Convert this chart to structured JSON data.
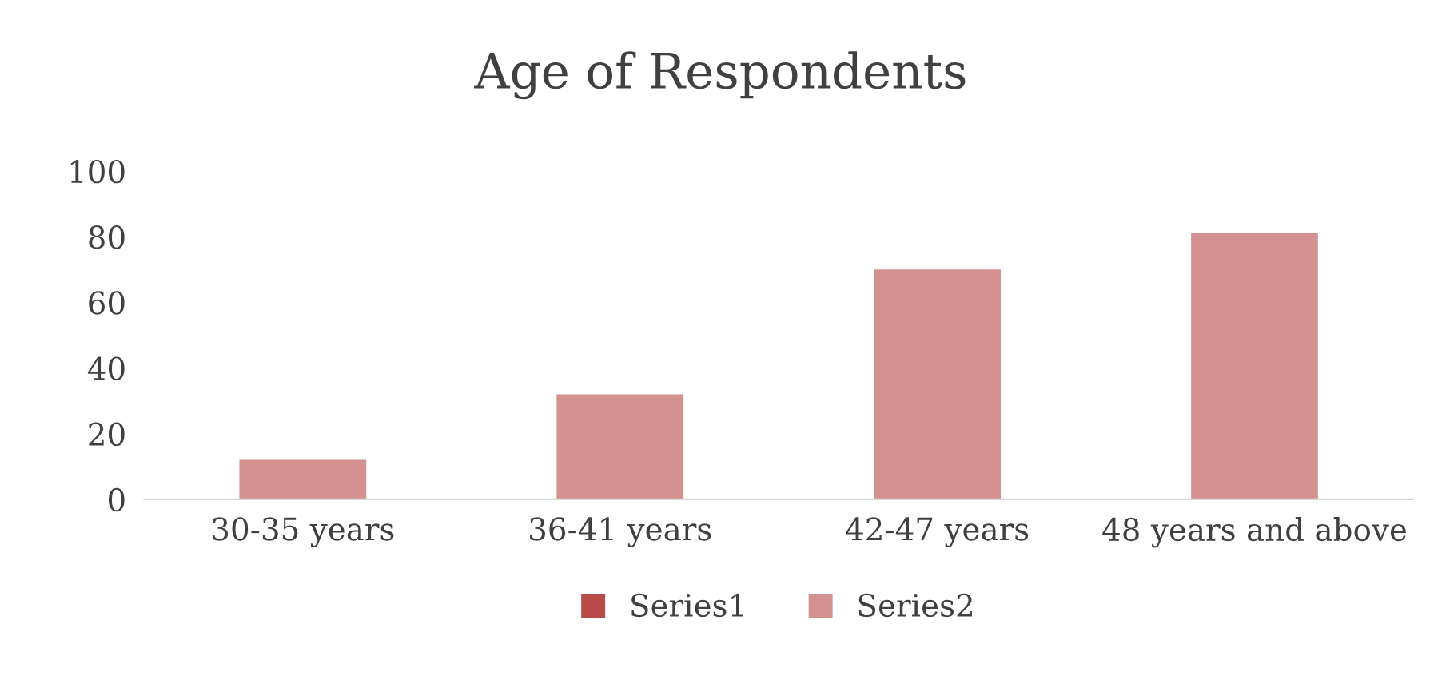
{
  "chart_data": {
    "type": "bar",
    "title": "Age of Respondents",
    "categories": [
      "30-35 years",
      "36-41 years",
      "42-47 years",
      "48 years and above"
    ],
    "series": [
      {
        "name": "Series1",
        "color": "#b84a48",
        "values": [
          null,
          null,
          null,
          null
        ]
      },
      {
        "name": "Series2",
        "color": "#d39190",
        "values": [
          12,
          32,
          70,
          81
        ]
      }
    ],
    "ylim": [
      0,
      100
    ],
    "yticks": [
      0,
      20,
      40,
      60,
      80,
      100
    ],
    "grid": false,
    "legend": "bottom"
  }
}
